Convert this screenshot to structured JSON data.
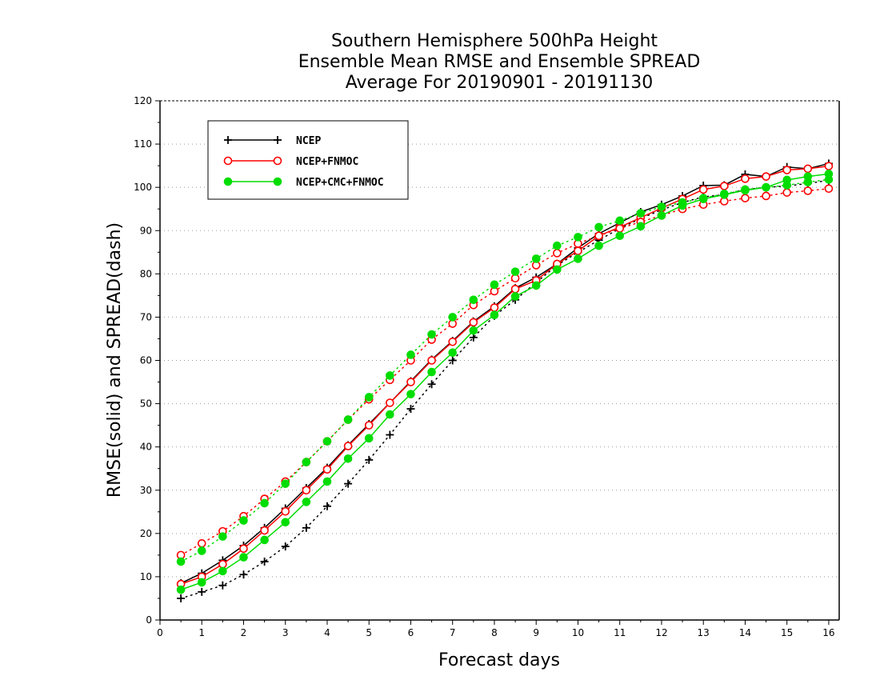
{
  "chart_data": {
    "type": "line",
    "title": [
      "Southern Hemisphere 500hPa Height",
      "Ensemble Mean RMSE and Ensemble SPREAD",
      "Average For 20190901 - 20191130"
    ],
    "xlabel": "Forecast days",
    "ylabel": "RMSE(solid) and SPREAD(dash)",
    "xlim": [
      0,
      16.25
    ],
    "ylim": [
      0,
      120
    ],
    "xticks": [
      "0",
      "1",
      "2",
      "3",
      "4",
      "5",
      "6",
      "7",
      "8",
      "9",
      "10",
      "11",
      "12",
      "13",
      "14",
      "15",
      "16"
    ],
    "yticks": [
      "0",
      "10",
      "20",
      "30",
      "40",
      "50",
      "60",
      "70",
      "80",
      "90",
      "100",
      "110",
      "120"
    ],
    "grid": "horizontal dotted",
    "legend_position": "top-left",
    "x": [
      0.5,
      1,
      1.5,
      2,
      2.5,
      3,
      3.5,
      4,
      4.5,
      5,
      5.5,
      6,
      6.5,
      7,
      7.5,
      8,
      8.5,
      9,
      9.5,
      10,
      10.5,
      11,
      11.5,
      12,
      12.5,
      13,
      13.5,
      14,
      14.5,
      15,
      15.5,
      16
    ],
    "series": [
      {
        "name": "NCEP",
        "color": "#000000",
        "marker": "plus",
        "rmse": [
          8.5,
          10.8,
          13.8,
          17.2,
          21.3,
          25.8,
          30.5,
          35.2,
          40.4,
          45.3,
          50.2,
          55.2,
          60.2,
          64.5,
          69.0,
          72.5,
          76.7,
          79.2,
          82.3,
          86.0,
          89.3,
          91.8,
          94.3,
          96.0,
          98.0,
          100.4,
          100.5,
          103.0,
          102.5,
          104.7,
          104.3,
          105.5
        ],
        "spread": [
          5.0,
          6.5,
          8.0,
          10.5,
          13.5,
          17.0,
          21.3,
          26.3,
          31.5,
          37.0,
          42.8,
          48.8,
          54.5,
          60.0,
          65.3,
          70.3,
          74.0,
          78.0,
          82.0,
          85.0,
          87.8,
          90.5,
          92.8,
          94.8,
          96.5,
          97.8,
          98.3,
          99.5,
          100.0,
          100.3,
          100.9,
          101.6
        ]
      },
      {
        "name": "NCEP+FNMOC",
        "color": "#ff0000",
        "marker": "open-circle",
        "rmse": [
          8.3,
          10.0,
          12.9,
          16.5,
          20.7,
          25.1,
          30.0,
          34.8,
          40.2,
          45.0,
          50.2,
          55.0,
          60.0,
          64.3,
          68.8,
          72.2,
          76.5,
          78.5,
          82.3,
          85.3,
          88.8,
          90.8,
          93.0,
          95.2,
          97.3,
          99.5,
          100.3,
          102.0,
          102.5,
          104.0,
          104.3,
          104.9
        ],
        "spread": [
          15.0,
          17.7,
          20.5,
          24.0,
          28.0,
          32.0,
          36.5,
          41.3,
          46.3,
          51.0,
          55.5,
          60.0,
          64.8,
          68.5,
          72.8,
          76.0,
          79.0,
          82.0,
          84.8,
          87.0,
          88.8,
          90.5,
          92.0,
          93.5,
          95.0,
          96.0,
          96.8,
          97.5,
          98.0,
          98.8,
          99.2,
          99.7
        ]
      },
      {
        "name": "NCEP+CMC+FNMOC",
        "color": "#00dd00",
        "marker": "filled-circle",
        "rmse": [
          7.0,
          8.7,
          11.3,
          14.5,
          18.5,
          22.6,
          27.3,
          32.0,
          37.3,
          42.0,
          47.5,
          52.2,
          57.3,
          61.8,
          66.9,
          70.5,
          74.8,
          77.3,
          81.0,
          83.5,
          86.5,
          88.8,
          91.0,
          93.5,
          95.8,
          97.3,
          98.3,
          99.3,
          100.0,
          101.7,
          102.5,
          103.1
        ],
        "spread": [
          13.5,
          16.0,
          19.3,
          23.0,
          27.0,
          31.5,
          36.5,
          41.3,
          46.3,
          51.5,
          56.5,
          61.3,
          66.0,
          70.0,
          74.0,
          77.5,
          80.5,
          83.5,
          86.5,
          88.5,
          90.8,
          92.3,
          94.0,
          95.5,
          96.5,
          97.5,
          98.5,
          99.5,
          100.0,
          100.5,
          101.2,
          101.8
        ]
      }
    ]
  }
}
